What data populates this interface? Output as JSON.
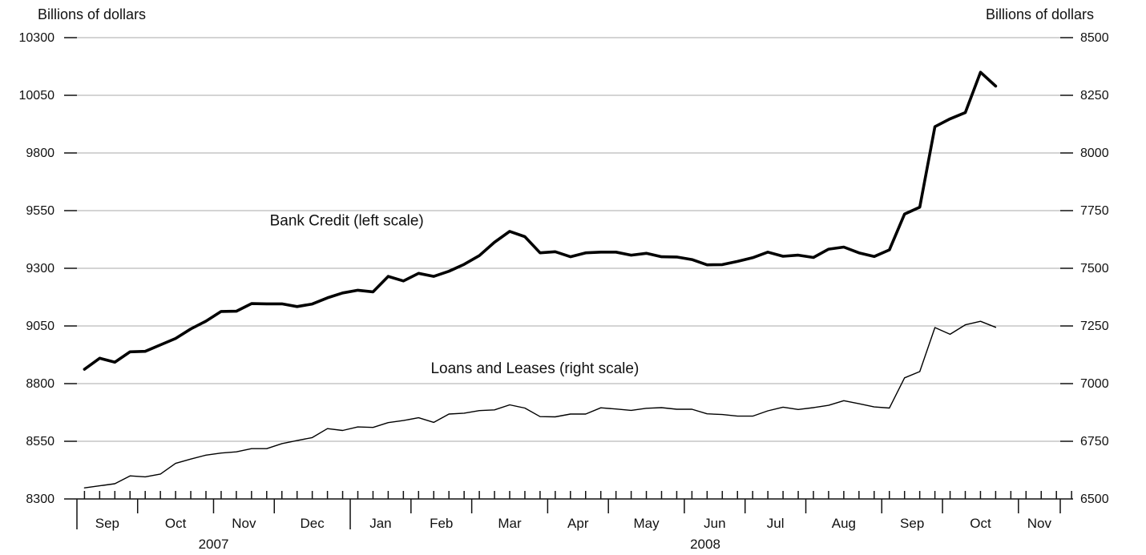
{
  "chart_data": {
    "type": "line",
    "left_axis_label": "Billions of dollars",
    "right_axis_label": "Billions of dollars",
    "left_ylim": [
      8300,
      10300
    ],
    "right_ylim": [
      6500,
      8500
    ],
    "left_ticks": [
      "8300",
      "8550",
      "8800",
      "9050",
      "9300",
      "9550",
      "9800",
      "10050",
      "10300"
    ],
    "right_ticks": [
      "6500",
      "6750",
      "7000",
      "7250",
      "7500",
      "7750",
      "8000",
      "8250",
      "8500"
    ],
    "grid": true,
    "months": [
      "Sep",
      "Oct",
      "Nov",
      "Dec",
      "Jan",
      "Feb",
      "Mar",
      "Apr",
      "May",
      "Jun",
      "Jul",
      "Aug",
      "Sep",
      "Oct",
      "Nov"
    ],
    "years": [
      {
        "label": "2007",
        "start_month": 0,
        "months": 4
      },
      {
        "label": "2008",
        "start_month": 4,
        "months": 11
      }
    ],
    "weeks_per_month": [
      4,
      5,
      4,
      5,
      4,
      4,
      5,
      4,
      5,
      4,
      4,
      5,
      4,
      5,
      4
    ],
    "series": [
      {
        "name": "Bank Credit (left scale)",
        "axis": "left",
        "label_anchor": {
          "week": 12.2,
          "value": 9485
        },
        "values": [
          8862,
          8910,
          8893,
          8938,
          8940,
          8968,
          8996,
          9037,
          9071,
          9113,
          9114,
          9147,
          9146,
          9146,
          9134,
          9145,
          9172,
          9193,
          9205,
          9198,
          9265,
          9245,
          9278,
          9265,
          9287,
          9317,
          9355,
          9413,
          9460,
          9437,
          9367,
          9372,
          9350,
          9367,
          9370,
          9370,
          9357,
          9365,
          9350,
          9349,
          9338,
          9315,
          9316,
          9330,
          9346,
          9370,
          9352,
          9357,
          9347,
          9383,
          9392,
          9367,
          9351,
          9380,
          9535,
          9565,
          9914,
          9948,
          9975,
          10150,
          10090
        ]
      },
      {
        "name": "Loans and Leases (right scale)",
        "axis": "right",
        "label_anchor": {
          "week": 22.8,
          "value": 7045
        },
        "values": [
          6548,
          6557,
          6566,
          6600,
          6596,
          6608,
          6654,
          6673,
          6690,
          6699,
          6704,
          6718,
          6718,
          6740,
          6753,
          6766,
          6805,
          6797,
          6812,
          6810,
          6831,
          6840,
          6852,
          6832,
          6868,
          6872,
          6883,
          6886,
          6908,
          6894,
          6857,
          6856,
          6868,
          6868,
          6895,
          6890,
          6884,
          6893,
          6896,
          6889,
          6889,
          6869,
          6866,
          6859,
          6859,
          6882,
          6898,
          6888,
          6896,
          6906,
          6926,
          6913,
          6899,
          6894,
          7025,
          7052,
          7243,
          7214,
          7255,
          7270,
          7244
        ]
      }
    ]
  }
}
